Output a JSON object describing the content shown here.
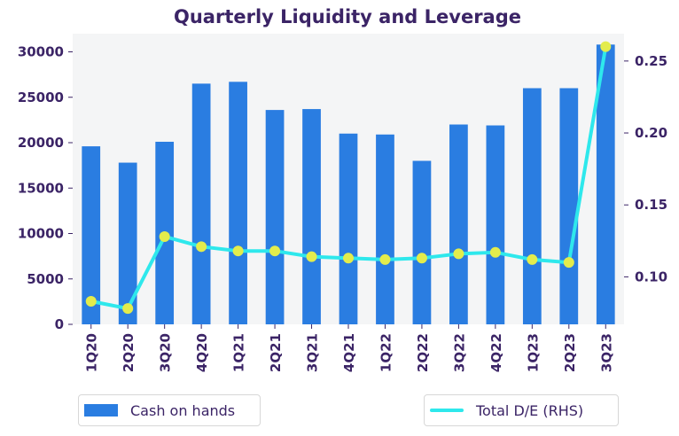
{
  "chart_data": {
    "type": "bar",
    "title": "Quarterly Liquidity and Leverage",
    "categories": [
      "1Q20",
      "2Q20",
      "3Q20",
      "4Q20",
      "1Q21",
      "2Q21",
      "3Q21",
      "4Q21",
      "1Q22",
      "2Q22",
      "3Q22",
      "4Q22",
      "1Q23",
      "2Q23",
      "3Q23"
    ],
    "series": [
      {
        "name": "Cash on hands",
        "type": "bar",
        "axis": "left",
        "color": "#2a7de1",
        "values": [
          19600,
          17800,
          20100,
          26500,
          26700,
          23600,
          23700,
          21000,
          20900,
          18000,
          22000,
          21900,
          26000,
          26000,
          30800
        ]
      },
      {
        "name": "Total D/E (RHS)",
        "type": "line",
        "axis": "right",
        "color": "#2ee8ec",
        "marker_color": "#e3ec4c",
        "values": [
          0.083,
          0.078,
          0.128,
          0.121,
          0.118,
          0.118,
          0.114,
          0.113,
          0.112,
          0.113,
          0.116,
          0.117,
          0.112,
          0.11,
          0.26
        ]
      }
    ],
    "ylim_left": [
      0,
      32000
    ],
    "yticks_left": [
      0,
      5000,
      10000,
      15000,
      20000,
      25000,
      30000
    ],
    "ylim_right": [
      0.067,
      0.269
    ],
    "yticks_right": [
      "0.10",
      "0.15",
      "0.20",
      "0.25"
    ],
    "xlabel": "",
    "ylabel": "",
    "grid": false,
    "legend_position": "bottom",
    "background": "#f4f5f6"
  }
}
